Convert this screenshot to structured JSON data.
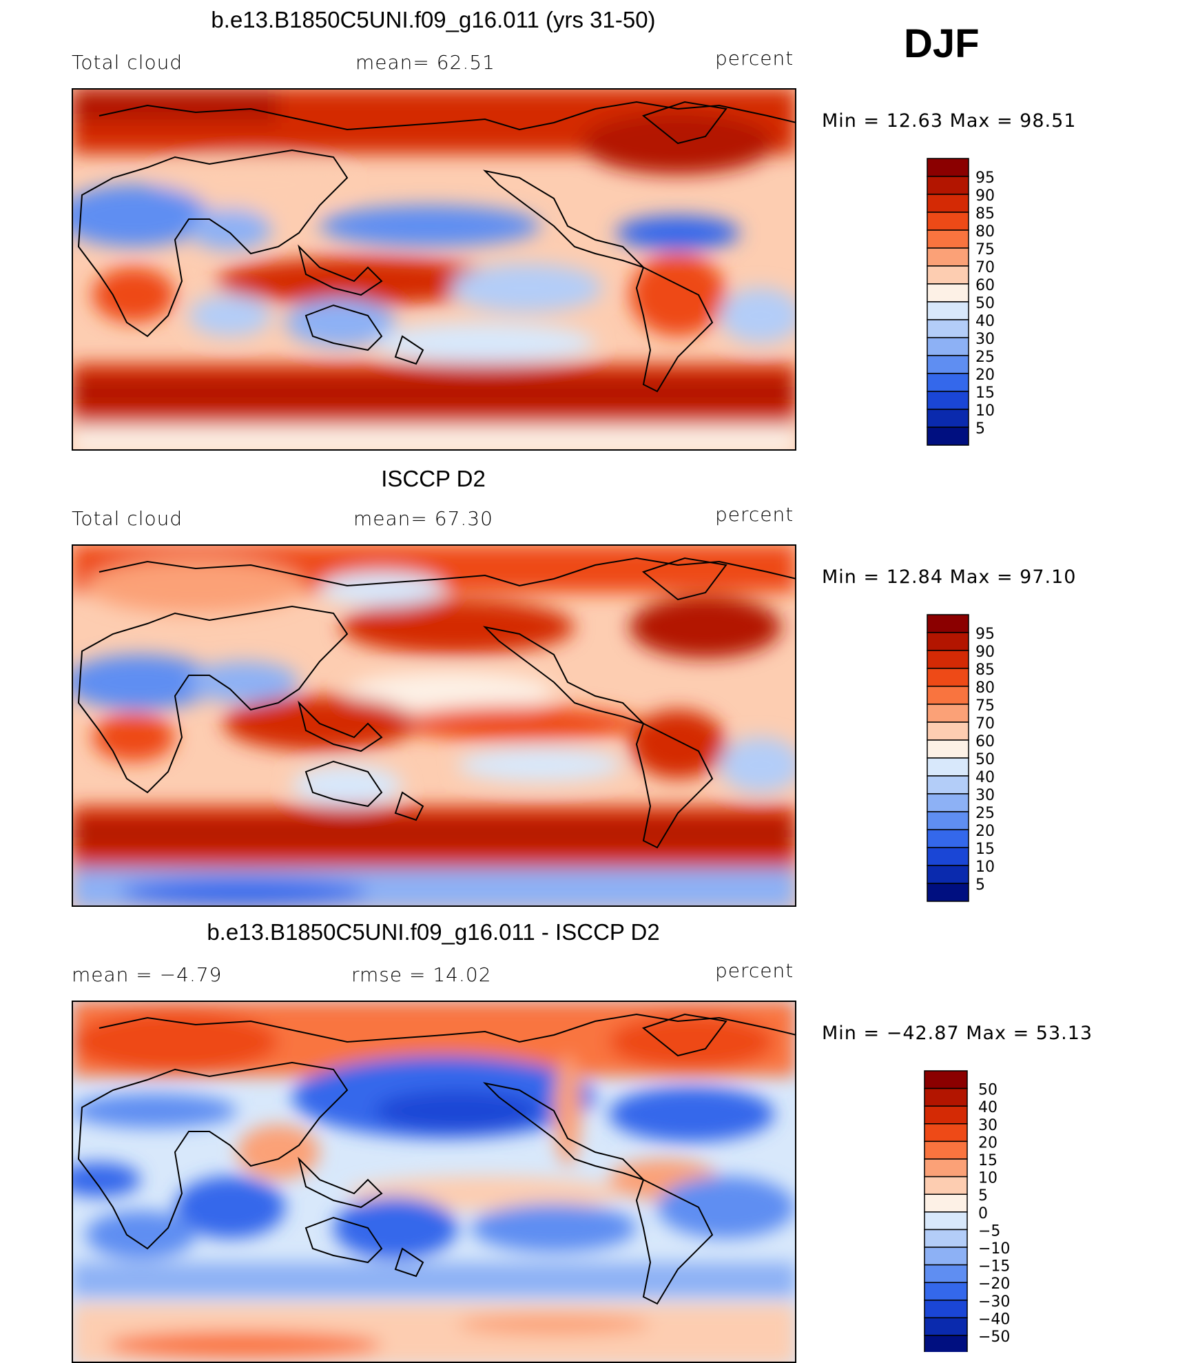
{
  "season": "DJF",
  "chart_data": [
    {
      "type": "heatmap",
      "title": "b.e13.B1850C5UNI.f09_g16.011 (yrs 31-50)",
      "left_label": "Total cloud",
      "center_label": "mean=   62.51",
      "units": "percent",
      "mean": 62.51,
      "min_label": "Min =   12.63 Max =   98.51",
      "min": 12.63,
      "max": 98.51,
      "colorbar": {
        "levels": [
          "95",
          "90",
          "85",
          "80",
          "75",
          "70",
          "60",
          "50",
          "40",
          "30",
          "25",
          "20",
          "15",
          "10",
          "5"
        ],
        "colors": [
          "#8b0000",
          "#b31500",
          "#d42a05",
          "#ee4a17",
          "#f9743f",
          "#fba177",
          "#fdcdb1",
          "#fdf1e6",
          "#d8e8fb",
          "#b3cdf8",
          "#8db1f5",
          "#5f8ef2",
          "#3468eb",
          "#1a46d6",
          "#0a2aae",
          "#000f80"
        ]
      },
      "map": "global total cloud fraction, model"
    },
    {
      "type": "heatmap",
      "title": "ISCCP D2",
      "left_label": "Total cloud",
      "center_label": "mean=   67.30",
      "units": "percent",
      "mean": 67.3,
      "min_label": "Min =   12.84 Max =   97.10",
      "min": 12.84,
      "max": 97.1,
      "colorbar": {
        "levels": [
          "95",
          "90",
          "85",
          "80",
          "75",
          "70",
          "60",
          "50",
          "40",
          "30",
          "25",
          "20",
          "15",
          "10",
          "5"
        ],
        "colors": [
          "#8b0000",
          "#b31500",
          "#d42a05",
          "#ee4a17",
          "#f9743f",
          "#fba177",
          "#fdcdb1",
          "#fdf1e6",
          "#d8e8fb",
          "#b3cdf8",
          "#8db1f5",
          "#5f8ef2",
          "#3468eb",
          "#1a46d6",
          "#0a2aae",
          "#000f80"
        ]
      },
      "map": "global total cloud fraction, observations"
    },
    {
      "type": "heatmap",
      "title": "b.e13.B1850C5UNI.f09_g16.011 - ISCCP D2",
      "left_label": "mean =   −4.79",
      "center_label": "rmse =   14.02",
      "units": "percent",
      "mean": -4.79,
      "rmse": 14.02,
      "min_label": "Min = −42.87 Max =   53.13",
      "min": -42.87,
      "max": 53.13,
      "colorbar": {
        "levels": [
          "50",
          "40",
          "30",
          "20",
          "15",
          "10",
          "5",
          "0",
          "−5",
          "−10",
          "−15",
          "−20",
          "−30",
          "−40",
          "−50"
        ],
        "colors": [
          "#8b0000",
          "#b31500",
          "#d42a05",
          "#ee4a17",
          "#f9743f",
          "#fba177",
          "#fdcdb1",
          "#fdf1e6",
          "#d8e8fb",
          "#b3cdf8",
          "#8db1f5",
          "#5f8ef2",
          "#3468eb",
          "#1a46d6",
          "#0a2aae",
          "#000f80"
        ]
      },
      "map": "difference, model minus observations"
    }
  ]
}
